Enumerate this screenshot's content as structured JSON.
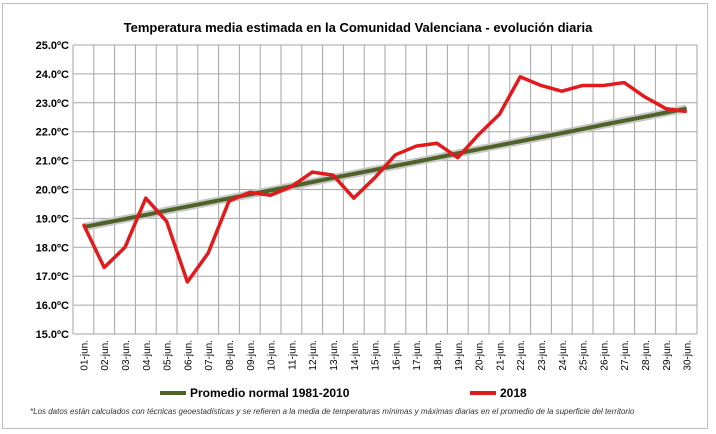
{
  "chart_data": {
    "type": "line",
    "title": "Temperatura media estimada en la Comunidad Valenciana - evolución diaria",
    "footnote": "*Los datos están calculados con técnicas geoestadísticas y se refieren a la media de temperaturas mínimas y máximas diarias en el promedio de la superficie del territorio",
    "categories": [
      "01-jun.",
      "02-jun.",
      "03-jun.",
      "04-jun.",
      "05-jun.",
      "06-jun.",
      "07-jun.",
      "08-jun.",
      "09-jun.",
      "10-jun.",
      "11-jun.",
      "12-jun.",
      "13-jun.",
      "14-jun.",
      "15-jun.",
      "16-jun.",
      "17-jun.",
      "18-jun.",
      "19-jun.",
      "20-jun.",
      "21-jun.",
      "22-jun.",
      "23-jun.",
      "24-jun.",
      "25-jun.",
      "26-jun.",
      "27-jun.",
      "28-jun.",
      "29-jun.",
      "30-jun."
    ],
    "yticks": [
      "15.0ºC",
      "16.0ºC",
      "17.0ºC",
      "18.0ºC",
      "19.0ºC",
      "20.0ºC",
      "21.0ºC",
      "22.0ºC",
      "23.0ºC",
      "24.0ºC",
      "25.0ºC"
    ],
    "ylim": [
      15,
      25
    ],
    "grid": true,
    "legend": "bottom",
    "series": [
      {
        "name": "Promedio normal 1981-2010",
        "color": "#4f6228",
        "values": [
          18.7,
          18.84,
          18.98,
          19.12,
          19.27,
          19.41,
          19.55,
          19.69,
          19.83,
          19.97,
          20.11,
          20.26,
          20.4,
          20.54,
          20.68,
          20.82,
          20.96,
          21.1,
          21.25,
          21.39,
          21.53,
          21.67,
          21.81,
          21.95,
          22.09,
          22.24,
          22.38,
          22.52,
          22.66,
          22.8
        ]
      },
      {
        "name": "2018",
        "color": "#e31a1c",
        "values": [
          18.8,
          17.3,
          18.0,
          19.7,
          18.9,
          16.8,
          17.8,
          19.6,
          19.9,
          19.8,
          20.1,
          20.6,
          20.5,
          19.7,
          20.4,
          21.2,
          21.5,
          21.6,
          21.1,
          21.9,
          22.6,
          23.9,
          23.6,
          23.4,
          23.6,
          23.6,
          23.7,
          23.2,
          22.8,
          22.7
        ]
      }
    ]
  }
}
